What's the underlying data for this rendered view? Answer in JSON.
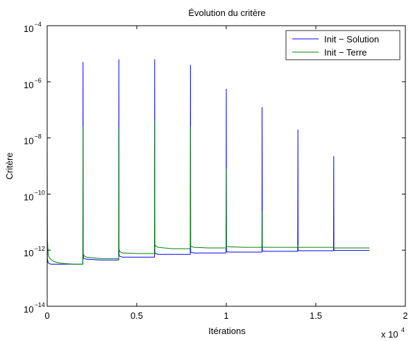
{
  "chart_data": {
    "type": "line",
    "title": "Évolution du critère",
    "xlabel": "Itérations",
    "ylabel": "Critère",
    "x_multiplier_label": {
      "base": "x 10",
      "exp": "4"
    },
    "xlim": [
      0,
      2
    ],
    "ylim_exp": [
      -14,
      -4
    ],
    "yscale": "log",
    "x_ticks": [
      {
        "value": 0,
        "label": "0"
      },
      {
        "value": 0.5,
        "label": "0.5"
      },
      {
        "value": 1,
        "label": "1"
      },
      {
        "value": 1.5,
        "label": "1.5"
      },
      {
        "value": 2,
        "label": "2"
      }
    ],
    "y_ticks": [
      {
        "exp": -14,
        "base": "10",
        "power": "−14"
      },
      {
        "exp": -12,
        "base": "10",
        "power": "−12"
      },
      {
        "exp": -10,
        "base": "10",
        "power": "−10"
      },
      {
        "exp": -8,
        "base": "10",
        "power": "−8"
      },
      {
        "exp": -6,
        "base": "10",
        "power": "−6"
      },
      {
        "exp": -4,
        "base": "10",
        "power": "−4"
      }
    ],
    "grid": false,
    "legend_position": "top-right",
    "series": [
      {
        "name": "Init − Solution",
        "color": "#0000ff",
        "x": [
          0,
          0.001,
          0.005,
          0.02,
          0.06,
          0.1,
          0.15,
          0.199,
          0.2,
          0.201,
          0.205,
          0.22,
          0.3,
          0.399,
          0.4,
          0.401,
          0.405,
          0.42,
          0.5,
          0.599,
          0.6,
          0.601,
          0.605,
          0.62,
          0.7,
          0.799,
          0.8,
          0.801,
          0.805,
          0.82,
          0.9,
          0.999,
          1.0,
          1.001,
          1.005,
          1.02,
          1.1,
          1.199,
          1.2,
          1.201,
          1.205,
          1.22,
          1.3,
          1.399,
          1.4,
          1.401,
          1.405,
          1.42,
          1.5,
          1.599,
          1.6,
          1.601,
          1.605,
          1.62,
          1.7,
          1.8
        ],
        "log10y": [
          -10.8,
          -12.3,
          -12.45,
          -12.5,
          -12.5,
          -12.5,
          -12.5,
          -12.5,
          -5.3,
          -12.2,
          -12.3,
          -12.32,
          -12.35,
          -12.35,
          -5.2,
          -12.15,
          -12.22,
          -12.25,
          -12.25,
          -12.25,
          -5.2,
          -12.08,
          -12.12,
          -12.15,
          -12.15,
          -12.15,
          -5.4,
          -12.06,
          -12.08,
          -12.1,
          -12.1,
          -12.1,
          -6.25,
          -12.04,
          -12.06,
          -12.07,
          -12.07,
          -12.07,
          -6.9,
          -12.02,
          -12.03,
          -12.04,
          -12.04,
          -12.04,
          -7.7,
          -12.01,
          -12.02,
          -12.02,
          -12.02,
          -12.02,
          -8.65,
          -12.0,
          -12.01,
          -12.01,
          -12.01,
          -12.01
        ]
      },
      {
        "name": "Init − Terre",
        "color": "#008000",
        "x": [
          0,
          0.001,
          0.005,
          0.01,
          0.03,
          0.06,
          0.1,
          0.15,
          0.199,
          0.2,
          0.201,
          0.205,
          0.22,
          0.3,
          0.399,
          0.4,
          0.401,
          0.405,
          0.42,
          0.5,
          0.599,
          0.6,
          0.601,
          0.605,
          0.62,
          0.7,
          0.799,
          0.8,
          0.801,
          0.805,
          0.82,
          0.9,
          0.999,
          1.0,
          1.001,
          1.005,
          1.02,
          1.1,
          1.199,
          1.2,
          1.201,
          1.205,
          1.22,
          1.3,
          1.399,
          1.4,
          1.401,
          1.405,
          1.42,
          1.5,
          1.599,
          1.6,
          1.601,
          1.605,
          1.62,
          1.7,
          1.8
        ],
        "log10y": [
          -8.4,
          -11.6,
          -12.1,
          -12.25,
          -12.38,
          -12.45,
          -12.48,
          -12.5,
          -12.5,
          -7.6,
          -12.1,
          -12.2,
          -12.25,
          -12.3,
          -12.3,
          -7.6,
          -11.95,
          -12.05,
          -12.1,
          -12.12,
          -12.12,
          -7.4,
          -11.8,
          -11.85,
          -11.9,
          -11.95,
          -11.95,
          -7.6,
          -11.85,
          -11.87,
          -11.9,
          -11.92,
          -11.92,
          -9.1,
          -11.85,
          -11.87,
          -11.88,
          -11.9,
          -11.9,
          -10.6,
          -11.88,
          -11.89,
          -11.9,
          -11.9,
          -11.9,
          -11.8,
          -11.9,
          -11.9,
          -11.9,
          -11.9,
          -11.9,
          -11.9,
          -11.92,
          -11.92,
          -11.92,
          -11.92,
          -11.92
        ]
      }
    ]
  }
}
